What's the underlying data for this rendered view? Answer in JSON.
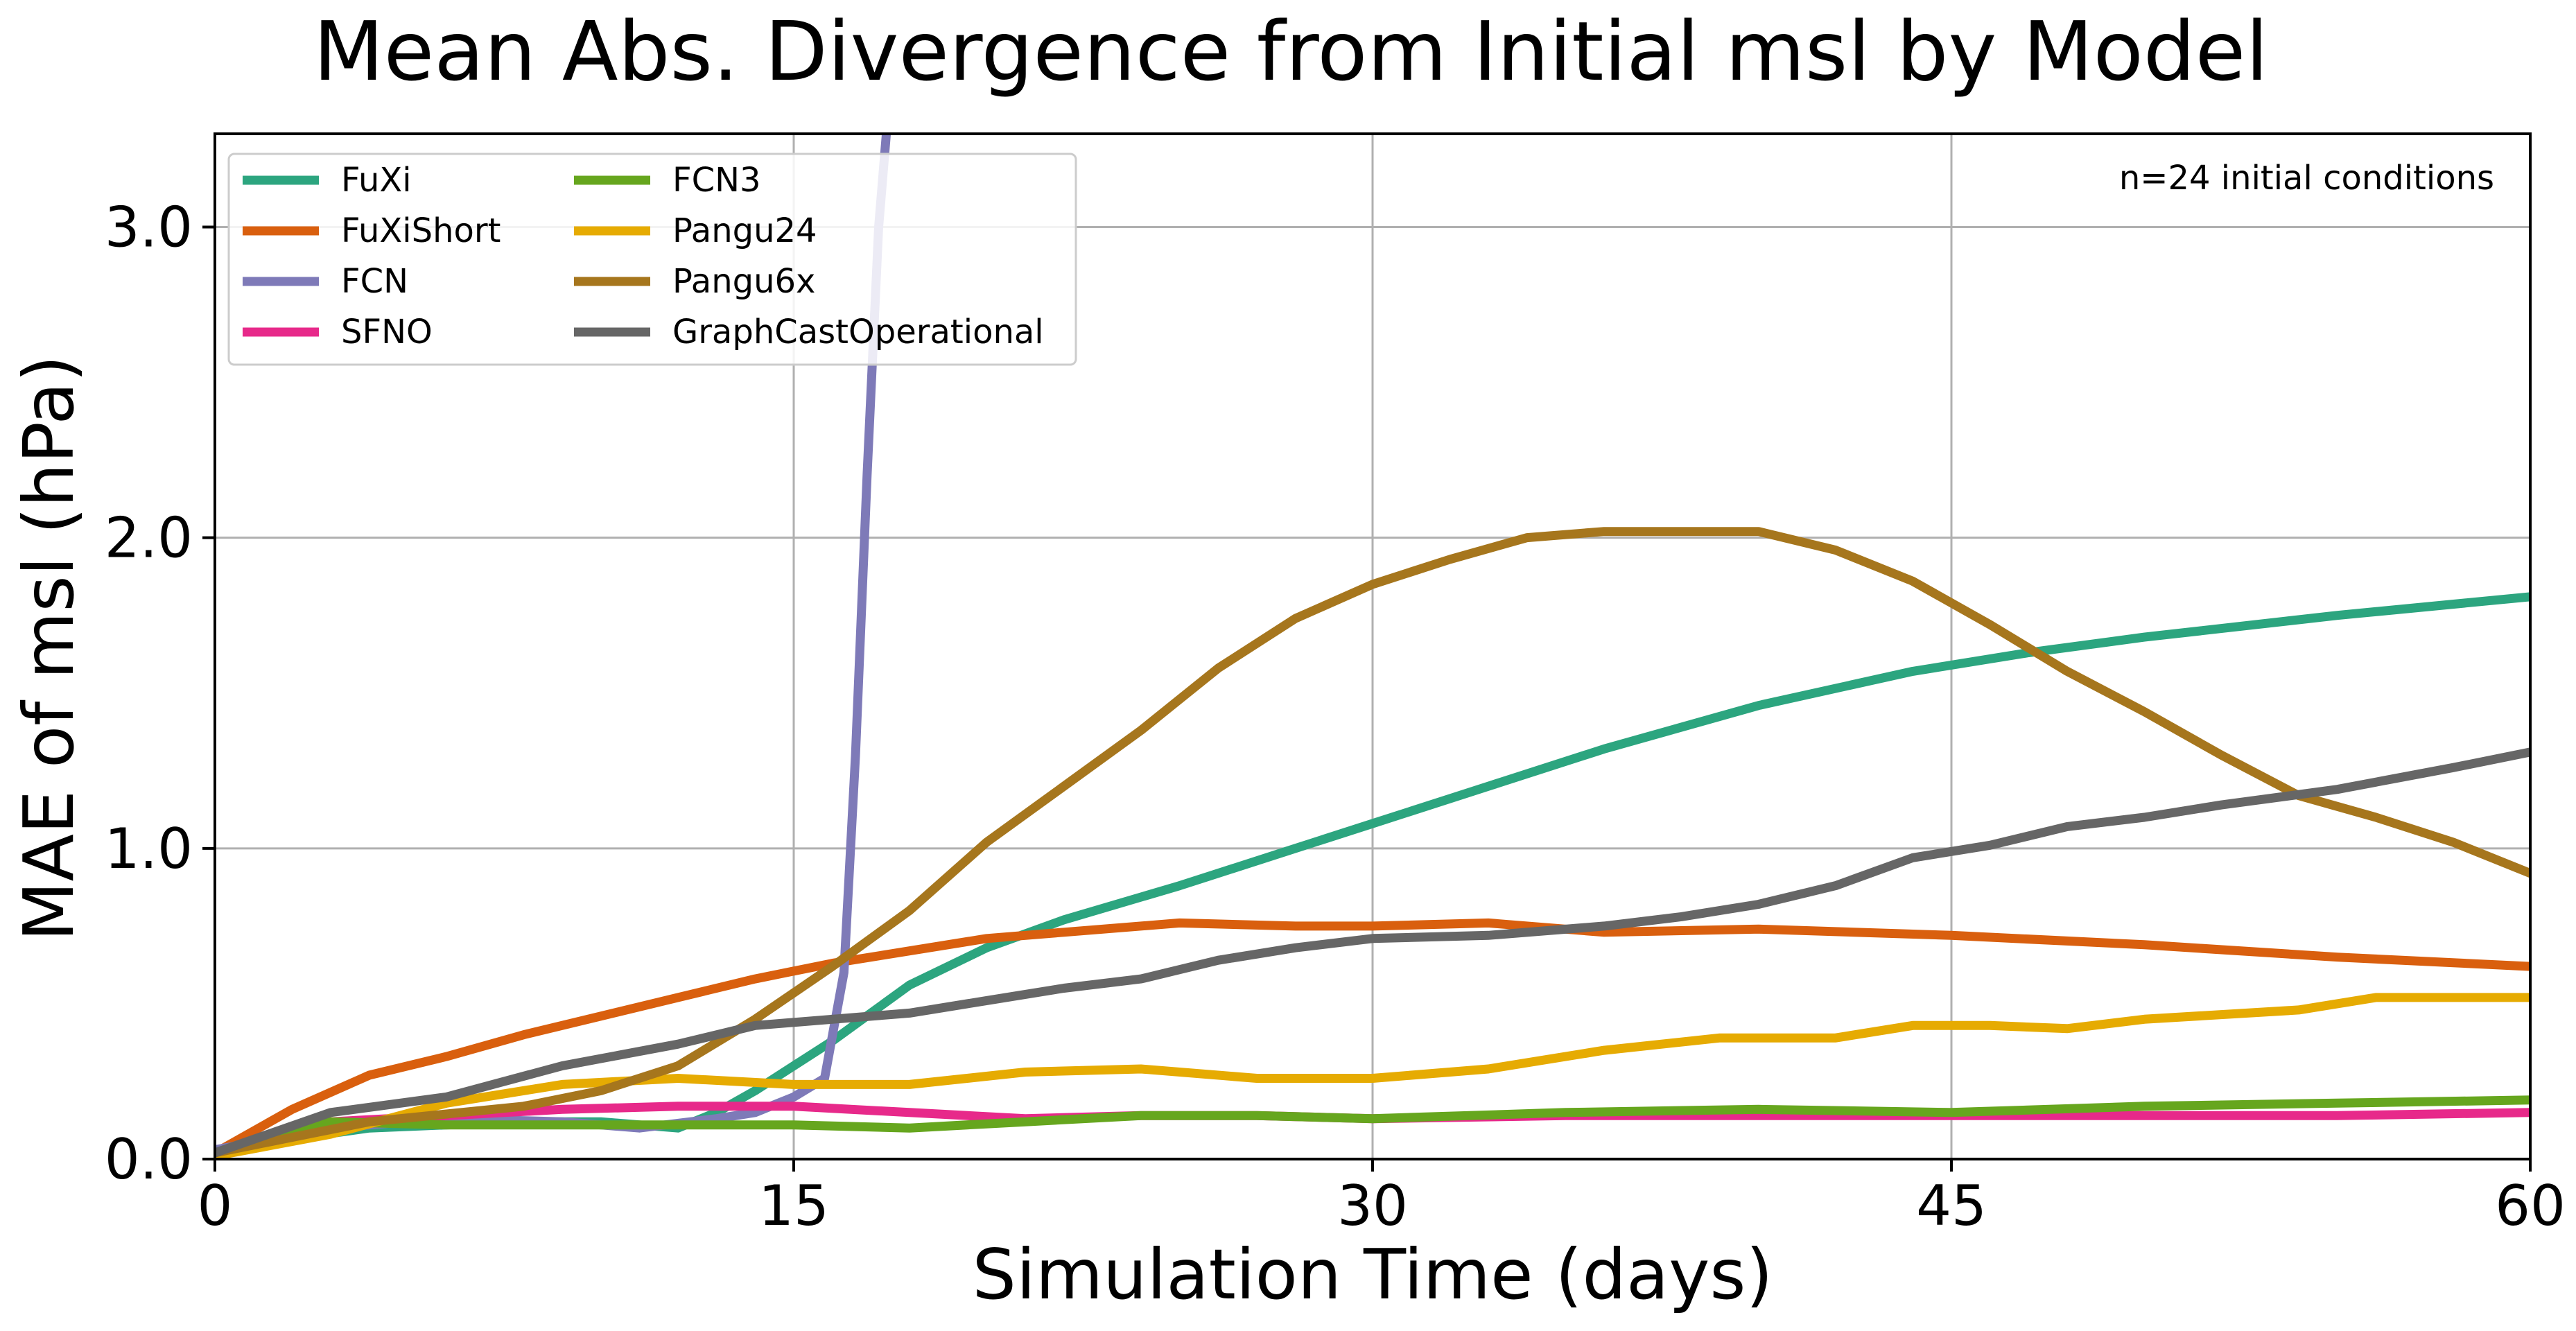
{
  "chart_data": {
    "type": "line",
    "title": "Mean Abs. Divergence from Initial msl by Model",
    "xlabel": "Simulation Time (days)",
    "ylabel": "MAE of msl (hPa)",
    "xlim": [
      0,
      60
    ],
    "ylim": [
      0,
      3.3
    ],
    "xticks": [
      0,
      15,
      30,
      45,
      60
    ],
    "xtick_labels": [
      "0",
      "15",
      "30",
      "45",
      "60"
    ],
    "yticks": [
      0,
      1,
      2,
      3
    ],
    "ytick_labels": [
      "0.0",
      "1.0",
      "2.0",
      "3.0"
    ],
    "grid": true,
    "legend_position": "upper-left",
    "annotation": "n=24 initial conditions",
    "series": [
      {
        "name": "FuXi",
        "color": "#2ca57f",
        "x": [
          0,
          4,
          8,
          10,
          12,
          13,
          14,
          15,
          16,
          17,
          18,
          20,
          22,
          25,
          28,
          30,
          33,
          36,
          40,
          44,
          47,
          50,
          55,
          60
        ],
        "y": [
          0.03,
          0.1,
          0.12,
          0.12,
          0.1,
          0.15,
          0.22,
          0.3,
          0.38,
          0.47,
          0.56,
          0.68,
          0.77,
          0.88,
          1.0,
          1.08,
          1.2,
          1.32,
          1.46,
          1.57,
          1.63,
          1.68,
          1.75,
          1.81
        ]
      },
      {
        "name": "FuXiShort",
        "color": "#d95f0e",
        "x": [
          0,
          2,
          4,
          6,
          8,
          10,
          12,
          14,
          16,
          18,
          20,
          22,
          25,
          28,
          30,
          33,
          36,
          40,
          45,
          50,
          55,
          60
        ],
        "y": [
          0.02,
          0.16,
          0.27,
          0.33,
          0.4,
          0.46,
          0.52,
          0.58,
          0.63,
          0.67,
          0.71,
          0.73,
          0.76,
          0.75,
          0.75,
          0.76,
          0.73,
          0.74,
          0.72,
          0.69,
          0.65,
          0.62
        ]
      },
      {
        "name": "FCN",
        "color": "#7e7ab8",
        "x": [
          0,
          3,
          6,
          9,
          11,
          13,
          14,
          15,
          15.8,
          16.3,
          16.6,
          16.9,
          17.2,
          17.4
        ],
        "y": [
          0.03,
          0.1,
          0.13,
          0.12,
          0.1,
          0.13,
          0.15,
          0.2,
          0.26,
          0.6,
          1.3,
          2.2,
          3.0,
          3.3
        ]
      },
      {
        "name": "SFNO",
        "color": "#e7298a",
        "x": [
          0,
          3,
          6,
          9,
          12,
          15,
          18,
          21,
          24,
          27,
          30,
          35,
          40,
          45,
          50,
          55,
          60
        ],
        "y": [
          0.02,
          0.12,
          0.14,
          0.16,
          0.17,
          0.17,
          0.15,
          0.13,
          0.14,
          0.14,
          0.13,
          0.14,
          0.14,
          0.14,
          0.14,
          0.14,
          0.15
        ]
      },
      {
        "name": "FCN3",
        "color": "#66a61e",
        "x": [
          0,
          3,
          6,
          9,
          12,
          15,
          18,
          21,
          24,
          27,
          30,
          35,
          40,
          45,
          50,
          55,
          60
        ],
        "y": [
          0.02,
          0.12,
          0.11,
          0.11,
          0.11,
          0.11,
          0.1,
          0.12,
          0.14,
          0.14,
          0.13,
          0.15,
          0.16,
          0.15,
          0.17,
          0.18,
          0.19
        ]
      },
      {
        "name": "Pangu24",
        "color": "#e6ab02",
        "x": [
          0,
          3,
          6,
          9,
          12,
          15,
          18,
          21,
          24,
          27,
          30,
          33,
          36,
          39,
          42,
          44,
          46,
          48,
          50,
          54,
          56,
          60
        ],
        "y": [
          0.01,
          0.08,
          0.18,
          0.24,
          0.26,
          0.24,
          0.24,
          0.28,
          0.29,
          0.26,
          0.26,
          0.29,
          0.35,
          0.39,
          0.39,
          0.43,
          0.43,
          0.42,
          0.45,
          0.48,
          0.52,
          0.52
        ]
      },
      {
        "name": "Pangu6x",
        "color": "#a6761d",
        "x": [
          0,
          4,
          8,
          10,
          12,
          14,
          16,
          18,
          20,
          22,
          24,
          26,
          28,
          30,
          32,
          34,
          36,
          38,
          40,
          42,
          44,
          46,
          48,
          50,
          52,
          54,
          56,
          58,
          60
        ],
        "y": [
          0.02,
          0.12,
          0.17,
          0.22,
          0.3,
          0.45,
          0.62,
          0.8,
          1.02,
          1.2,
          1.38,
          1.58,
          1.74,
          1.85,
          1.93,
          2.0,
          2.02,
          2.02,
          2.02,
          1.96,
          1.86,
          1.72,
          1.57,
          1.44,
          1.3,
          1.17,
          1.1,
          1.02,
          0.92
        ]
      },
      {
        "name": "GraphCastOperational",
        "color": "#666666",
        "x": [
          0,
          3,
          6,
          9,
          12,
          14,
          16,
          18,
          20,
          22,
          24,
          26,
          28,
          30,
          33,
          36,
          38,
          40,
          42,
          44,
          46,
          48,
          50,
          52,
          55,
          58,
          60
        ],
        "y": [
          0.02,
          0.15,
          0.2,
          0.3,
          0.37,
          0.43,
          0.45,
          0.47,
          0.51,
          0.55,
          0.58,
          0.64,
          0.68,
          0.71,
          0.72,
          0.75,
          0.78,
          0.82,
          0.88,
          0.97,
          1.01,
          1.07,
          1.1,
          1.14,
          1.19,
          1.26,
          1.31
        ]
      }
    ]
  }
}
